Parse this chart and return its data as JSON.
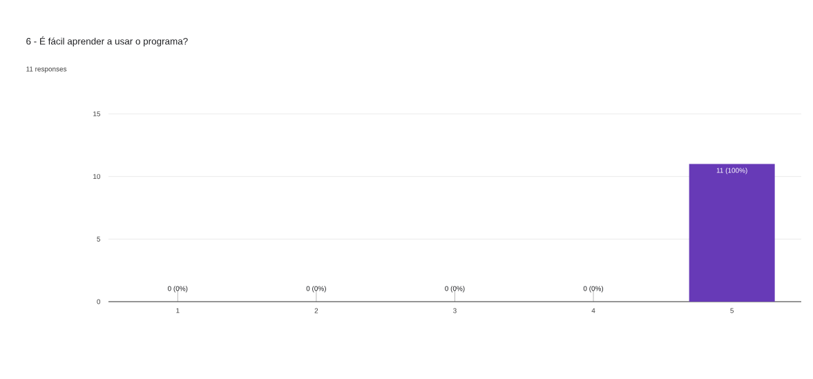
{
  "chart_data": {
    "type": "bar",
    "title": "6 - É fácil aprender a usar o programa?",
    "subtitle": "11 responses",
    "categories": [
      "1",
      "2",
      "3",
      "4",
      "5"
    ],
    "values": [
      0,
      0,
      0,
      0,
      11
    ],
    "value_labels": [
      "0 (0%)",
      "0 (0%)",
      "0 (0%)",
      "0 (0%)",
      "11 (100%)"
    ],
    "color": "#673ab7",
    "ylim": [
      0,
      15
    ],
    "yticks": [
      0,
      5,
      10,
      15
    ],
    "grid": "y"
  }
}
